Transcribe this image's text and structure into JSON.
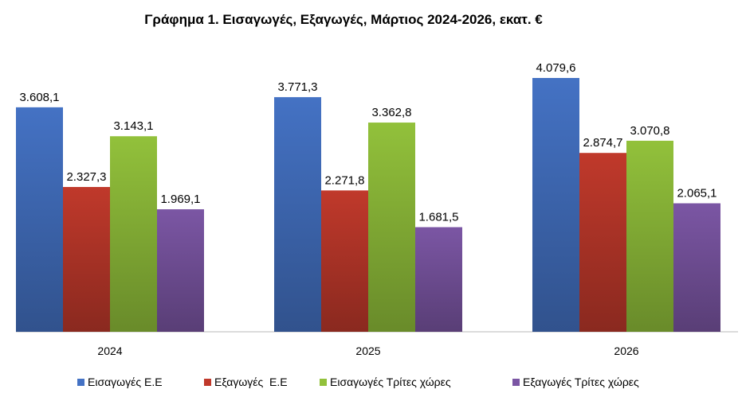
{
  "chart_data": {
    "type": "bar",
    "title": "Γράφημα 1. Εισαγωγές, Εξαγωγές, Μάρτιος 2024-2026, εκατ. €",
    "categories": [
      "2024",
      "2025",
      "2026"
    ],
    "series": [
      {
        "name": "Εισαγωγές Ε.Ε",
        "values": [
          3608.1,
          3771.3,
          4079.6
        ],
        "labels": [
          "3.608,1",
          "3.771,3",
          "4.079,6"
        ],
        "color": "#4472c4"
      },
      {
        "name": "Εξαγωγές  Ε.Ε",
        "values": [
          2327.3,
          2271.8,
          2874.7
        ],
        "labels": [
          "2.327,3",
          "2.271,8",
          "2.874,7"
        ],
        "color": "#c0392b"
      },
      {
        "name": "Εισαγωγές Τρίτες χώρες",
        "values": [
          3143.1,
          3362.8,
          3070.8
        ],
        "labels": [
          "3.143,1",
          "3.362,8",
          "3.070,8"
        ],
        "color": "#92c13b"
      },
      {
        "name": "Εξαγωγές Τρίτες χώρες",
        "values": [
          1969.1,
          1681.5,
          2065.1
        ],
        "labels": [
          "1.969,1",
          "1.681,5",
          "2.065,1"
        ],
        "color": "#7b56a4"
      }
    ],
    "xlabel": "",
    "ylabel": "",
    "ylim": [
      0,
      4500
    ],
    "grid": false,
    "legend": "bottom"
  }
}
